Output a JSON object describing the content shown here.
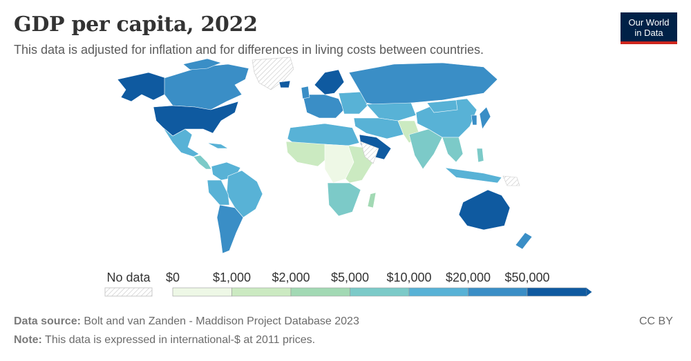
{
  "header": {
    "title": "GDP per capita, 2022",
    "subtitle": "This data is adjusted for inflation and for differences in living costs between countries."
  },
  "logo": {
    "line1": "Our World",
    "line2": "in Data"
  },
  "legend": {
    "no_data_label": "No data",
    "bins": [
      {
        "label": "$0",
        "color": "#eef8e6"
      },
      {
        "label": "$1,000",
        "color": "#cbeac1"
      },
      {
        "label": "$2,000",
        "color": "#a2d9b4"
      },
      {
        "label": "$5,000",
        "color": "#7ccac8"
      },
      {
        "label": "$10,000",
        "color": "#58b2d6"
      },
      {
        "label": "$20,000",
        "color": "#3a8ec6"
      },
      {
        "label": "$50,000",
        "color": "#0f5aa0"
      }
    ]
  },
  "map_colors": {
    "ocean": "#ffffff",
    "no_data_stroke": "#c9c9c9",
    "border": "#ffffff"
  },
  "footer": {
    "source_label": "Data source:",
    "source_text": "Bolt and van Zanden - Maddison Project Database 2023",
    "note_label": "Note:",
    "note_text": "This data is expressed in international-$ at 2011 prices.",
    "license": "CC BY"
  }
}
